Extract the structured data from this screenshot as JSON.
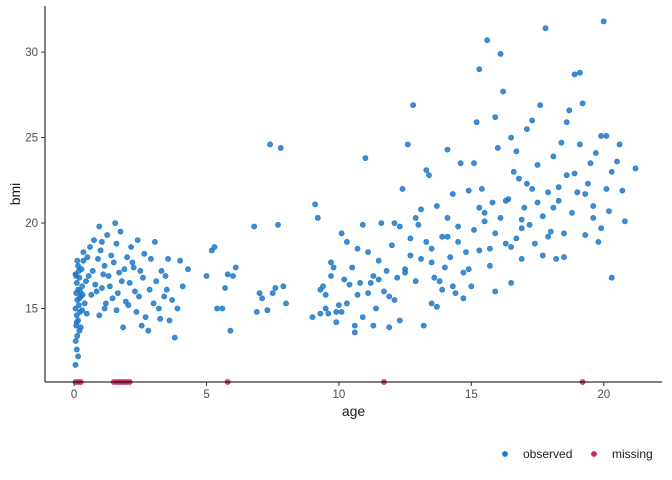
{
  "chart_data": {
    "type": "scatter",
    "title": "",
    "xlabel": "age",
    "ylabel": "bmi",
    "xlim": [
      -1.1,
      22.2
    ],
    "ylim": [
      10.7,
      32.7
    ],
    "xticks": [
      0,
      5,
      10,
      15,
      20
    ],
    "yticks": [
      15,
      20,
      25,
      30
    ],
    "grid": false,
    "legend_position": "bottom-right",
    "series": [
      {
        "name": "observed",
        "color": "#1f78c8",
        "points": [
          [
            0.05,
            11.7
          ],
          [
            0.1,
            12.6
          ],
          [
            0.15,
            12.2
          ],
          [
            0.06,
            13.1
          ],
          [
            0.12,
            13.4
          ],
          [
            0.2,
            13.7
          ],
          [
            0.08,
            14.0
          ],
          [
            0.15,
            14.3
          ],
          [
            0.1,
            14.6
          ],
          [
            0.22,
            14.8
          ],
          [
            0.05,
            15.0
          ],
          [
            0.18,
            15.2
          ],
          [
            0.12,
            15.5
          ],
          [
            0.25,
            15.7
          ],
          [
            0.08,
            15.9
          ],
          [
            0.15,
            16.1
          ],
          [
            0.3,
            16.3
          ],
          [
            0.1,
            16.5
          ],
          [
            0.2,
            16.8
          ],
          [
            0.05,
            17.0
          ],
          [
            0.28,
            17.3
          ],
          [
            0.15,
            17.5
          ],
          [
            0.35,
            17.8
          ],
          [
            0.1,
            14.2
          ],
          [
            0.3,
            14.9
          ],
          [
            0.4,
            15.3
          ],
          [
            0.22,
            16.0
          ],
          [
            0.45,
            16.6
          ],
          [
            0.18,
            17.2
          ],
          [
            0.5,
            18.0
          ],
          [
            0.35,
            18.3
          ],
          [
            0.6,
            18.6
          ],
          [
            0.25,
            13.9
          ],
          [
            0.08,
            16.9
          ],
          [
            0.32,
            15.8
          ],
          [
            0.12,
            17.8
          ],
          [
            0.48,
            14.7
          ],
          [
            0.2,
            15.6
          ],
          [
            0.55,
            16.9
          ],
          [
            0.7,
            17.2
          ],
          [
            0.8,
            16.4
          ],
          [
            0.9,
            17.9
          ],
          [
            1.0,
            18.4
          ],
          [
            0.75,
            19.0
          ],
          [
            1.1,
            17.0
          ],
          [
            0.65,
            15.8
          ],
          [
            0.85,
            16.0
          ],
          [
            1.2,
            15.3
          ],
          [
            0.95,
            14.6
          ],
          [
            1.3,
            16.9
          ],
          [
            1.05,
            18.9
          ],
          [
            1.25,
            19.3
          ],
          [
            1.4,
            18.1
          ],
          [
            1.15,
            17.5
          ],
          [
            1.35,
            16.3
          ],
          [
            1.45,
            15.6
          ],
          [
            1.5,
            17.7
          ],
          [
            1.6,
            18.8
          ],
          [
            1.55,
            20.0
          ],
          [
            1.7,
            17.1
          ],
          [
            1.8,
            16.6
          ],
          [
            1.65,
            15.9
          ],
          [
            1.9,
            17.3
          ],
          [
            2.0,
            18.0
          ],
          [
            2.1,
            16.5
          ],
          [
            1.95,
            15.4
          ],
          [
            2.2,
            17.7
          ],
          [
            2.3,
            16.0
          ],
          [
            2.4,
            19.0
          ],
          [
            2.5,
            17.2
          ],
          [
            2.45,
            15.7
          ],
          [
            2.6,
            16.8
          ],
          [
            2.7,
            14.5
          ],
          [
            2.55,
            14.0
          ],
          [
            2.8,
            13.7
          ],
          [
            2.9,
            17.9
          ],
          [
            3.0,
            15.3
          ],
          [
            3.1,
            16.6
          ],
          [
            3.2,
            15.0
          ],
          [
            3.3,
            17.2
          ],
          [
            3.4,
            15.7
          ],
          [
            3.5,
            16.1
          ],
          [
            3.6,
            14.3
          ],
          [
            3.7,
            15.5
          ],
          [
            3.8,
            13.3
          ],
          [
            3.9,
            15.0
          ],
          [
            4.0,
            17.8
          ],
          [
            4.1,
            16.3
          ],
          [
            4.3,
            17.3
          ],
          [
            2.25,
            17.4
          ],
          [
            2.15,
            18.6
          ],
          [
            1.75,
            19.5
          ],
          [
            0.95,
            19.8
          ],
          [
            1.15,
            15.0
          ],
          [
            1.85,
            13.9
          ],
          [
            2.35,
            14.8
          ],
          [
            2.65,
            18.2
          ],
          [
            2.85,
            16.1
          ],
          [
            3.05,
            18.9
          ],
          [
            3.25,
            14.4
          ],
          [
            3.45,
            16.9
          ],
          [
            1.05,
            16.2
          ],
          [
            1.6,
            14.9
          ],
          [
            2.05,
            15.2
          ],
          [
            3.55,
            17.9
          ],
          [
            5.0,
            16.9
          ],
          [
            5.2,
            18.4
          ],
          [
            5.3,
            18.6
          ],
          [
            5.4,
            15.0
          ],
          [
            5.6,
            15.0
          ],
          [
            5.7,
            16.2
          ],
          [
            5.8,
            17.0
          ],
          [
            5.9,
            13.7
          ],
          [
            6.0,
            16.9
          ],
          [
            6.1,
            17.4
          ],
          [
            6.8,
            19.8
          ],
          [
            6.9,
            14.8
          ],
          [
            7.0,
            15.9
          ],
          [
            7.1,
            15.6
          ],
          [
            7.3,
            14.9
          ],
          [
            7.4,
            24.6
          ],
          [
            7.5,
            15.9
          ],
          [
            7.6,
            16.2
          ],
          [
            7.7,
            19.9
          ],
          [
            7.8,
            24.4
          ],
          [
            7.9,
            16.3
          ],
          [
            8.0,
            15.3
          ],
          [
            9.0,
            14.5
          ],
          [
            9.1,
            21.1
          ],
          [
            9.2,
            20.3
          ],
          [
            9.3,
            14.7
          ],
          [
            9.4,
            16.3
          ],
          [
            9.5,
            15.0
          ],
          [
            9.6,
            14.7
          ],
          [
            9.7,
            16.9
          ],
          [
            9.8,
            17.4
          ],
          [
            9.9,
            14.8
          ],
          [
            10.0,
            15.2
          ],
          [
            10.1,
            19.4
          ],
          [
            10.2,
            16.7
          ],
          [
            10.3,
            15.3
          ],
          [
            10.4,
            16.4
          ],
          [
            10.5,
            17.4
          ],
          [
            10.6,
            14.0
          ],
          [
            10.7,
            18.5
          ],
          [
            10.8,
            16.5
          ],
          [
            10.9,
            19.9
          ],
          [
            11.0,
            23.8
          ],
          [
            11.1,
            18.3
          ],
          [
            11.2,
            16.5
          ],
          [
            11.3,
            14.0
          ],
          [
            11.4,
            15.0
          ],
          [
            11.5,
            16.7
          ],
          [
            11.6,
            20.0
          ],
          [
            11.7,
            16.0
          ],
          [
            11.8,
            17.2
          ],
          [
            11.9,
            15.7
          ],
          [
            12.0,
            18.7
          ],
          [
            12.1,
            20.0
          ],
          [
            12.2,
            16.8
          ],
          [
            12.3,
            19.8
          ],
          [
            12.4,
            22.0
          ],
          [
            12.5,
            17.3
          ],
          [
            12.6,
            24.6
          ],
          [
            12.7,
            19.1
          ],
          [
            12.8,
            26.9
          ],
          [
            12.9,
            16.6
          ],
          [
            13.0,
            19.9
          ],
          [
            13.1,
            17.9
          ],
          [
            13.2,
            14.0
          ],
          [
            13.3,
            18.9
          ],
          [
            13.4,
            22.8
          ],
          [
            13.5,
            15.3
          ],
          [
            13.6,
            16.8
          ],
          [
            13.7,
            21.0
          ],
          [
            13.8,
            16.6
          ],
          [
            13.9,
            19.2
          ],
          [
            14.0,
            17.4
          ],
          [
            14.1,
            20.3
          ],
          [
            14.2,
            18.0
          ],
          [
            14.3,
            16.3
          ],
          [
            14.4,
            15.9
          ],
          [
            14.5,
            19.8
          ],
          [
            14.6,
            23.5
          ],
          [
            14.7,
            17.1
          ],
          [
            14.8,
            18.3
          ],
          [
            14.9,
            21.9
          ],
          [
            15.0,
            16.3
          ],
          [
            15.1,
            19.6
          ],
          [
            15.2,
            25.9
          ],
          [
            15.3,
            18.4
          ],
          [
            15.4,
            22.0
          ],
          [
            15.5,
            20.6
          ],
          [
            15.6,
            30.7
          ],
          [
            15.7,
            17.5
          ],
          [
            15.8,
            21.2
          ],
          [
            15.9,
            19.4
          ],
          [
            16.0,
            24.4
          ],
          [
            16.1,
            20.3
          ],
          [
            16.2,
            27.7
          ],
          [
            16.3,
            18.8
          ],
          [
            16.4,
            21.4
          ],
          [
            16.5,
            16.5
          ],
          [
            16.6,
            23.0
          ],
          [
            16.7,
            19.1
          ],
          [
            16.8,
            22.6
          ],
          [
            16.9,
            17.9
          ],
          [
            17.0,
            20.9
          ],
          [
            17.1,
            25.5
          ],
          [
            17.2,
            19.9
          ],
          [
            17.3,
            22.0
          ],
          [
            17.4,
            18.8
          ],
          [
            17.5,
            23.4
          ],
          [
            17.6,
            26.9
          ],
          [
            17.7,
            20.4
          ],
          [
            17.8,
            31.4
          ],
          [
            17.9,
            21.8
          ],
          [
            18.0,
            19.5
          ],
          [
            18.1,
            23.9
          ],
          [
            18.2,
            17.9
          ],
          [
            18.3,
            21.3
          ],
          [
            18.4,
            24.7
          ],
          [
            18.5,
            19.4
          ],
          [
            18.6,
            22.8
          ],
          [
            18.7,
            26.6
          ],
          [
            18.8,
            20.6
          ],
          [
            18.9,
            28.7
          ],
          [
            19.0,
            21.8
          ],
          [
            19.1,
            24.6
          ],
          [
            19.2,
            27.0
          ],
          [
            19.3,
            19.3
          ],
          [
            19.4,
            22.3
          ],
          [
            19.5,
            23.5
          ],
          [
            19.6,
            20.3
          ],
          [
            19.7,
            24.1
          ],
          [
            19.8,
            18.9
          ],
          [
            19.9,
            25.1
          ],
          [
            20.0,
            31.8
          ],
          [
            20.1,
            25.1
          ],
          [
            20.2,
            20.7
          ],
          [
            20.3,
            16.8
          ],
          [
            20.5,
            23.6
          ],
          [
            20.6,
            24.6
          ],
          [
            20.7,
            21.9
          ],
          [
            20.8,
            20.1
          ],
          [
            21.2,
            23.2
          ],
          [
            15.3,
            29.0
          ],
          [
            16.1,
            29.9
          ],
          [
            19.1,
            28.8
          ],
          [
            13.3,
            23.1
          ],
          [
            14.1,
            24.3
          ],
          [
            12.9,
            20.3
          ],
          [
            15.9,
            26.2
          ],
          [
            17.3,
            26.0
          ],
          [
            16.7,
            24.2
          ],
          [
            18.6,
            25.9
          ],
          [
            13.7,
            15.1
          ],
          [
            12.3,
            14.3
          ],
          [
            11.9,
            13.9
          ],
          [
            10.6,
            13.6
          ],
          [
            14.5,
            18.9
          ],
          [
            15.5,
            20.1
          ],
          [
            16.3,
            21.3
          ],
          [
            17.1,
            22.3
          ],
          [
            18.9,
            22.9
          ],
          [
            19.6,
            21.0
          ],
          [
            14.9,
            17.3
          ],
          [
            13.5,
            17.7
          ],
          [
            12.7,
            18.1
          ],
          [
            11.5,
            17.8
          ],
          [
            10.3,
            18.9
          ],
          [
            9.7,
            17.7
          ],
          [
            15.7,
            18.5
          ],
          [
            16.9,
            19.7
          ],
          [
            18.1,
            20.9
          ],
          [
            17.7,
            18.1
          ],
          [
            14.3,
            21.7
          ],
          [
            13.1,
            20.8
          ],
          [
            16.5,
            25.0
          ],
          [
            15.1,
            23.5
          ],
          [
            19.9,
            19.7
          ],
          [
            20.3,
            23.0
          ],
          [
            11.1,
            15.9
          ],
          [
            10.9,
            14.5
          ],
          [
            9.3,
            16.1
          ],
          [
            9.9,
            14.2
          ],
          [
            12.1,
            15.5
          ],
          [
            13.9,
            16.1
          ],
          [
            14.7,
            15.6
          ],
          [
            15.9,
            16.0
          ],
          [
            16.5,
            18.6
          ],
          [
            17.9,
            19.2
          ],
          [
            18.5,
            18.0
          ],
          [
            19.3,
            21.7
          ],
          [
            20.1,
            22.0
          ],
          [
            18.3,
            22.1
          ],
          [
            17.5,
            21.2
          ],
          [
            16.9,
            20.2
          ],
          [
            15.3,
            20.9
          ],
          [
            14.1,
            19.2
          ],
          [
            13.5,
            18.5
          ],
          [
            12.5,
            17.1
          ],
          [
            11.3,
            16.9
          ],
          [
            10.7,
            15.8
          ],
          [
            10.1,
            14.8
          ],
          [
            9.5,
            15.8
          ]
        ]
      },
      {
        "name": "missing",
        "color": "#c8285a",
        "points": [
          [
            0.05,
            10.7
          ],
          [
            0.15,
            10.7
          ],
          [
            0.25,
            10.7
          ],
          [
            1.5,
            10.7
          ],
          [
            1.6,
            10.7
          ],
          [
            1.7,
            10.7
          ],
          [
            1.8,
            10.7
          ],
          [
            1.9,
            10.7
          ],
          [
            2.0,
            10.7
          ],
          [
            2.1,
            10.7
          ],
          [
            5.8,
            10.7
          ],
          [
            11.7,
            10.7
          ],
          [
            19.2,
            10.7
          ]
        ]
      }
    ]
  }
}
